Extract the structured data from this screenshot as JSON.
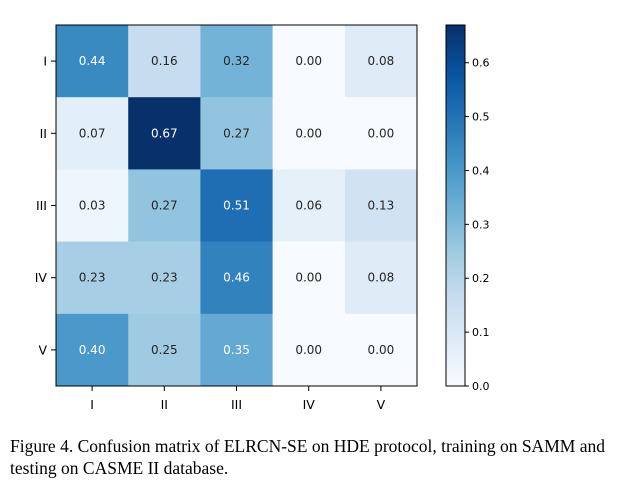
{
  "chart_data": {
    "type": "heatmap",
    "title": "",
    "xlabel": "",
    "ylabel": "",
    "x_categories": [
      "I",
      "II",
      "III",
      "IV",
      "V"
    ],
    "y_categories": [
      "I",
      "II",
      "III",
      "IV",
      "V"
    ],
    "values": [
      [
        0.44,
        0.16,
        0.32,
        0.0,
        0.08
      ],
      [
        0.07,
        0.67,
        0.27,
        0.0,
        0.0
      ],
      [
        0.03,
        0.27,
        0.51,
        0.06,
        0.13
      ],
      [
        0.23,
        0.23,
        0.46,
        0.0,
        0.08
      ],
      [
        0.4,
        0.25,
        0.35,
        0.0,
        0.0
      ]
    ],
    "value_format": "0.00",
    "colormap": "Blues",
    "colorbar": {
      "range": [
        0.0,
        0.67
      ],
      "ticks": [
        0.0,
        0.1,
        0.2,
        0.3,
        0.4,
        0.5,
        0.6
      ],
      "tick_labels": [
        "0.0",
        "0.1",
        "0.2",
        "0.3",
        "0.4",
        "0.5",
        "0.6"
      ]
    },
    "text_color_light": "#ffffff",
    "text_color_dark": "#262626"
  },
  "caption": {
    "text": "Figure 4.   Confusion matrix of ELRCN-SE on HDE protocol, training on SAMM and testing on CASME II database."
  }
}
